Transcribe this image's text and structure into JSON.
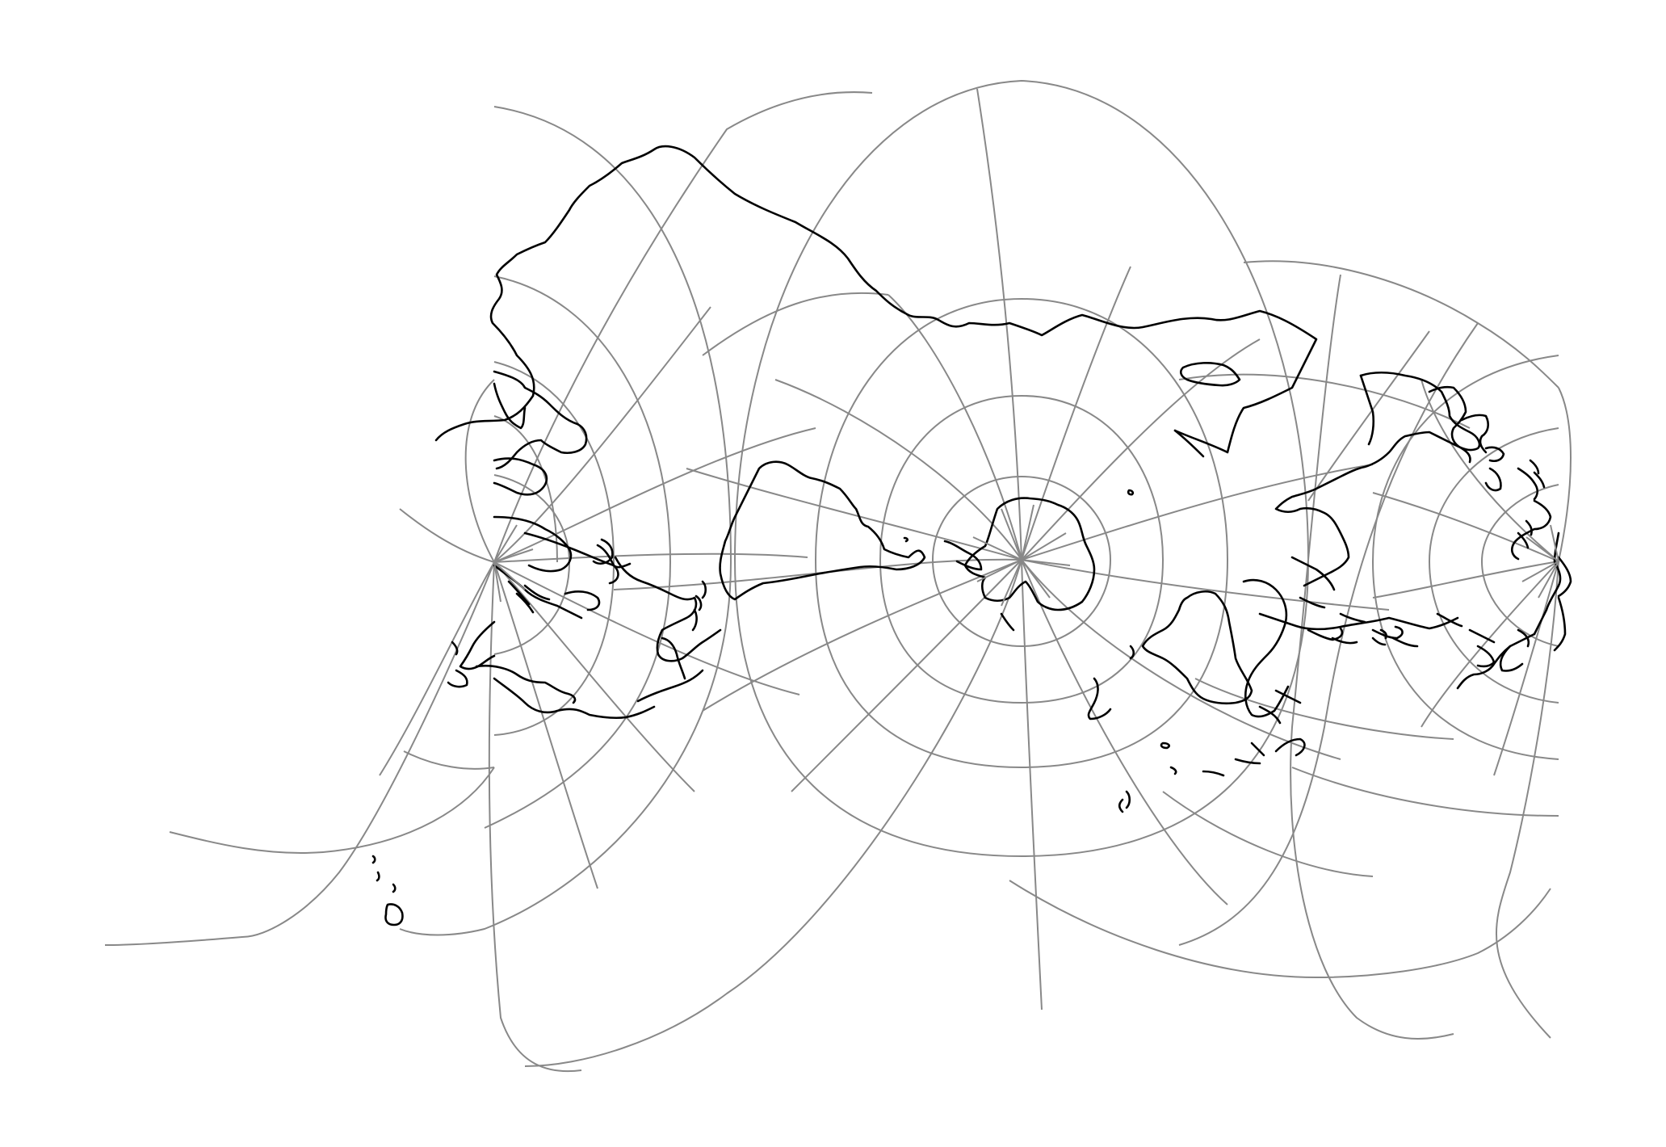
{
  "map": {
    "type": "graticule-world-map",
    "graticule_color": "#888888",
    "coastline_color": "#000000",
    "background": "#ffffff",
    "pole_points": 3
  }
}
